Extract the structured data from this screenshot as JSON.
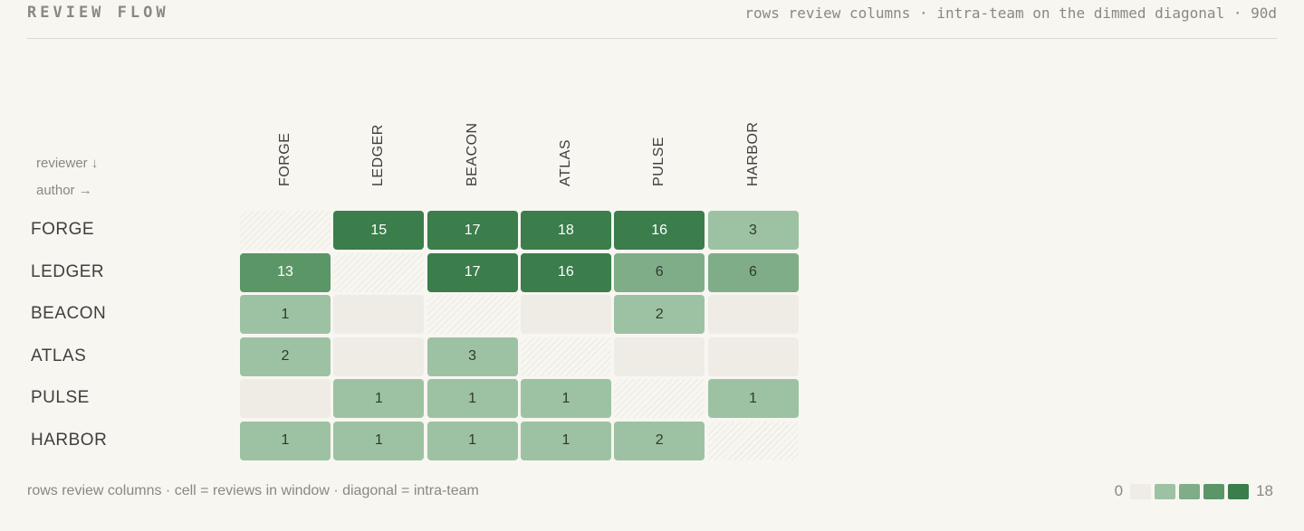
{
  "header": {
    "title": "REVIEW FLOW",
    "subtitle": "rows review columns · intra-team on the dimmed diagonal · 90d"
  },
  "axis_key": {
    "rows": "reviewer ↓",
    "cols": "author →"
  },
  "chart_data": {
    "type": "heatmap",
    "rows": [
      "FORGE",
      "LEDGER",
      "BEACON",
      "ATLAS",
      "PULSE",
      "HARBOR"
    ],
    "columns": [
      "FORGE",
      "LEDGER",
      "BEACON",
      "ATLAS",
      "PULSE",
      "HARBOR"
    ],
    "values": [
      [
        null,
        15,
        17,
        18,
        16,
        3
      ],
      [
        13,
        null,
        17,
        16,
        6,
        6
      ],
      [
        1,
        0,
        null,
        0,
        2,
        0
      ],
      [
        2,
        0,
        3,
        null,
        0,
        0
      ],
      [
        0,
        1,
        1,
        1,
        null,
        1
      ],
      [
        1,
        1,
        1,
        1,
        2,
        null
      ]
    ],
    "diagonal": "intra-team",
    "range": [
      0,
      18
    ]
  },
  "colors": {
    "empty": "#efece5",
    "scale": [
      "#efece5",
      "#9dc2a3",
      "#7fad88",
      "#5b9667",
      "#3b7d4b"
    ]
  },
  "footer": {
    "note": "rows review columns · cell = reviews in window · diagonal = intra-team"
  },
  "legend": {
    "min_label": "0",
    "max_label": "18"
  }
}
